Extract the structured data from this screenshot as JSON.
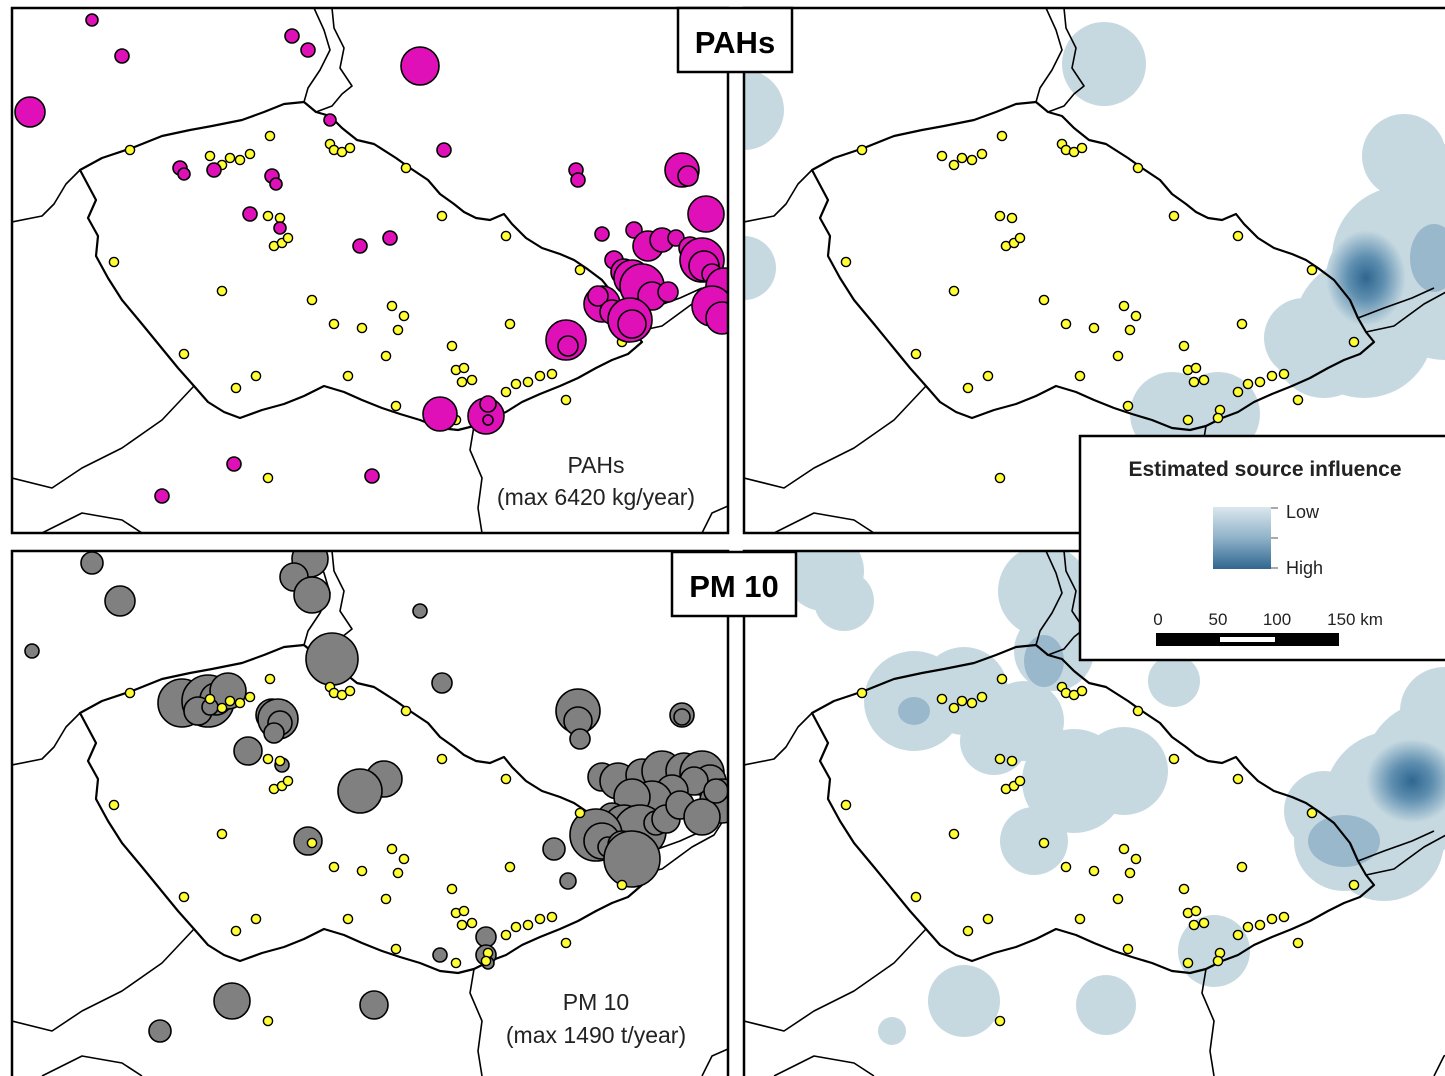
{
  "panels": {
    "pahs": {
      "title": "PAHs",
      "caption_name": "PAHs",
      "caption_max": "(max 6420 kg/year)",
      "source_color": "#e010b8"
    },
    "pm10": {
      "title": "PM 10",
      "caption_name": "PM 10",
      "caption_max": "(max 1490 t/year)",
      "source_color": "#808080"
    }
  },
  "legend": {
    "title": "Estimated source influence",
    "low_label": "Low",
    "high_label": "High",
    "ramp_colors": [
      "#c6d9e1",
      "#2f6690"
    ],
    "scalebar": {
      "ticks": [
        "0",
        "50",
        "100",
        "150 km"
      ]
    }
  },
  "colors": {
    "station": "#ffff33",
    "influence_low": "#c6d9e1",
    "influence_high": "#2f6690"
  }
}
